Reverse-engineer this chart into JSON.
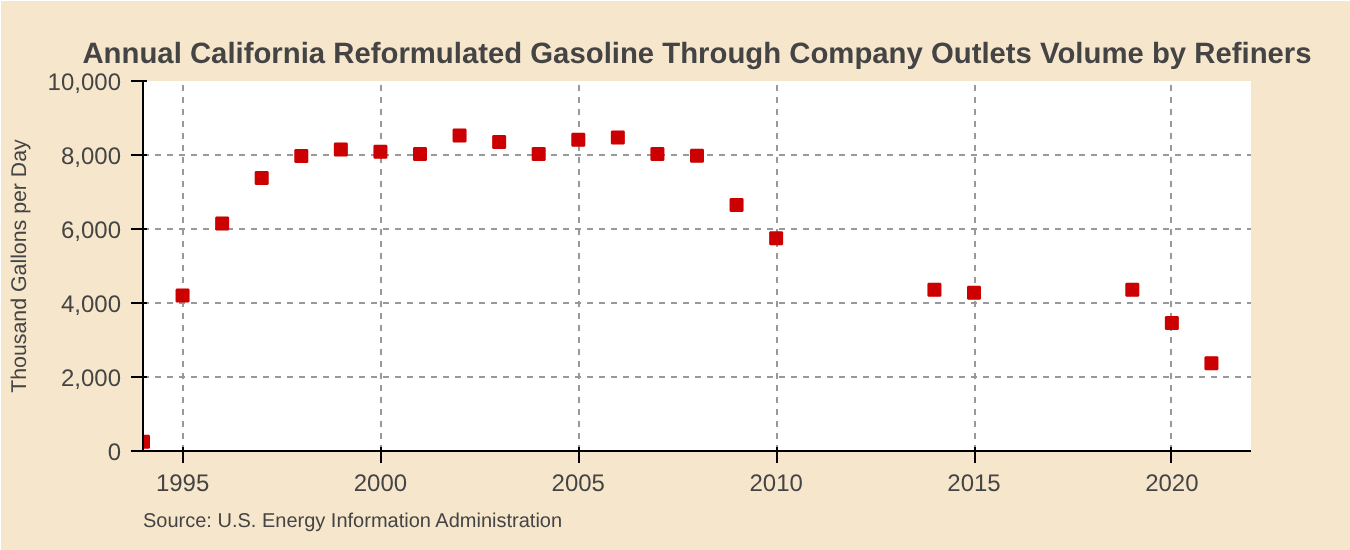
{
  "chart_data": {
    "type": "scatter",
    "title": "Annual California Reformulated Gasoline Through Company Outlets Volume by Refiners",
    "ylabel": "Thousand Gallons per Day",
    "x": [
      1994,
      1995,
      1996,
      1997,
      1998,
      1999,
      2000,
      2001,
      2002,
      2003,
      2004,
      2005,
      2006,
      2007,
      2008,
      2009,
      2010,
      2014,
      2015,
      2019,
      2020,
      2021
    ],
    "series": [
      {
        "color": "#cc0000",
        "values": [
          250,
          4200,
          6150,
          7380,
          7970,
          8150,
          8090,
          8030,
          8530,
          8350,
          8030,
          8410,
          8470,
          8030,
          7980,
          6650,
          5750,
          4360,
          4280,
          4360,
          3460,
          2370
        ]
      }
    ],
    "xlim": [
      1994,
      2022
    ],
    "xticks": [
      1995,
      2000,
      2005,
      2010,
      2015,
      2020
    ],
    "ylim": [
      0,
      10000
    ],
    "yticks": [
      {
        "value": 0,
        "label": "0"
      },
      {
        "value": 2000,
        "label": "2,000"
      },
      {
        "value": 4000,
        "label": "4,000"
      },
      {
        "value": 6000,
        "label": "6,000"
      },
      {
        "value": 8000,
        "label": "8,000"
      },
      {
        "value": 10000,
        "label": "10,000"
      }
    ],
    "grid": true,
    "marker": "square",
    "annotations": [
      "Source: U.S. Energy Information Administration"
    ]
  }
}
